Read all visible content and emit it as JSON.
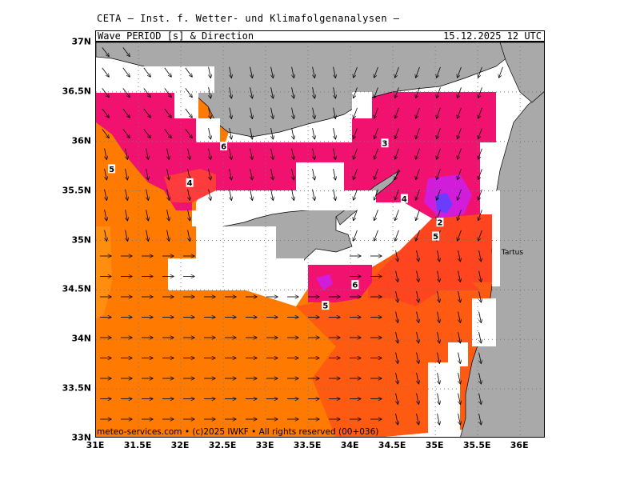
{
  "header": {
    "org_line": "CETA – Inst. f. Wetter- und Klimafolgenanalysen –",
    "product": "Wave_PERIOD_[s]_&_Direction",
    "valid_time": "15.12.2025 12 UTC"
  },
  "axes": {
    "lat_ticks": [
      "37N",
      "36.5N",
      "36N",
      "35.5N",
      "35N",
      "34.5N",
      "34N",
      "33.5N",
      "33N"
    ],
    "lon_ticks": [
      "31E",
      "31.5E",
      "32E",
      "32.5E",
      "33E",
      "33.5E",
      "34E",
      "34.5E",
      "35E",
      "35.5E",
      "36E"
    ],
    "lat_range": [
      33,
      37
    ],
    "lon_range": [
      31,
      36.3
    ],
    "grid": "dotted"
  },
  "map": {
    "variable": "wave period",
    "unit": "s",
    "contour_labels": [
      {
        "text": "6",
        "lon": 32.5,
        "lat": 35.95
      },
      {
        "text": "5",
        "lon": 31.18,
        "lat": 35.72
      },
      {
        "text": "4",
        "lon": 32.1,
        "lat": 35.58
      },
      {
        "text": "3",
        "lon": 34.4,
        "lat": 35.98
      },
      {
        "text": "4",
        "lon": 34.63,
        "lat": 35.42
      },
      {
        "text": "2",
        "lon": 35.05,
        "lat": 35.18
      },
      {
        "text": "5",
        "lon": 35.0,
        "lat": 35.04
      },
      {
        "text": "6",
        "lon": 34.05,
        "lat": 34.55
      },
      {
        "text": "5",
        "lon": 33.7,
        "lat": 34.34
      }
    ],
    "place_labels": [
      {
        "name": "Tartus",
        "lon": 35.78,
        "lat": 34.86
      }
    ],
    "dominant_direction": "towards south-west / south (north and east parts), towards east (south-west part)",
    "colors": {
      "land": "#a9a9a9",
      "period_2": "#6a3cff",
      "period_3": "#d21cdc",
      "period_4": "#f0126e",
      "period_5": "#ff4520",
      "period_6": "#ff7a00",
      "period_7": "#ff8e10"
    }
  },
  "footer": {
    "credit": "meteo-services.com • (c)2025 IWKF • All rights reserved (00+036)"
  }
}
